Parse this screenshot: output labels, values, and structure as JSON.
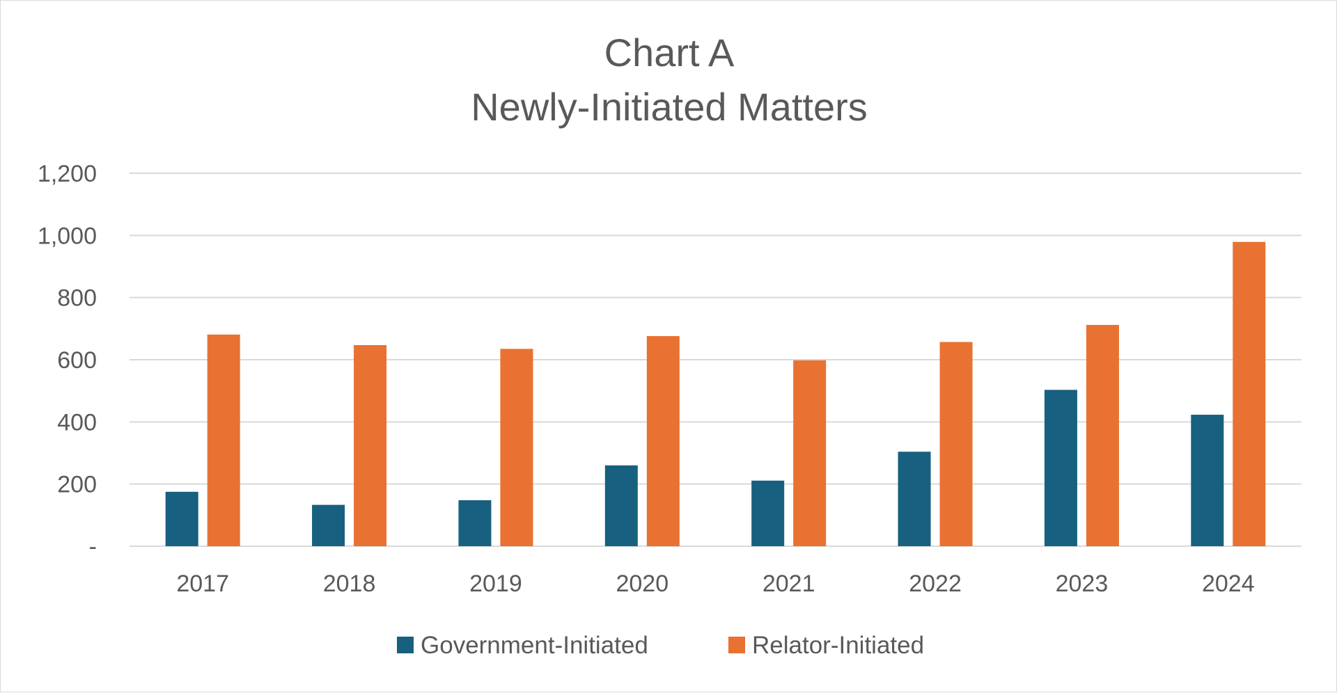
{
  "chart_data": {
    "type": "bar",
    "title_lines": [
      "Chart A",
      "Newly-Initiated Matters"
    ],
    "categories": [
      "2017",
      "2018",
      "2019",
      "2020",
      "2021",
      "2022",
      "2023",
      "2024"
    ],
    "series": [
      {
        "name": "Government-Initiated",
        "color": "#17607f",
        "values": [
          175,
          133,
          148,
          260,
          211,
          304,
          503,
          423
        ]
      },
      {
        "name": "Relator-Initiated",
        "color": "#e97132",
        "values": [
          681,
          647,
          635,
          676,
          598,
          657,
          712,
          979
        ]
      }
    ],
    "ylim": [
      0,
      1200
    ],
    "yticks": [
      0,
      200,
      400,
      600,
      800,
      1000,
      1200
    ],
    "ytick_labels": [
      "-",
      "200",
      "400",
      "600",
      "800",
      "1,000",
      "1,200"
    ],
    "grid": true,
    "legend_position": "bottom"
  }
}
